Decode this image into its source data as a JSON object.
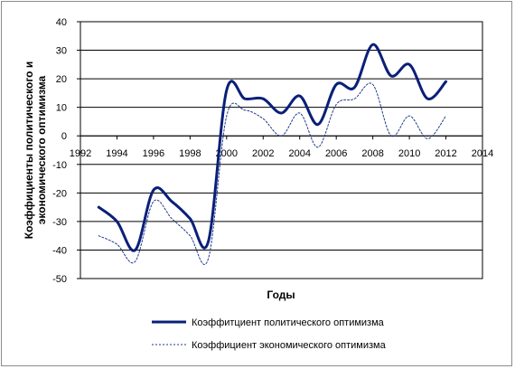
{
  "chart_data": {
    "type": "line",
    "title": "",
    "xlabel": "Годы",
    "ylabel_line1": "Коэффициенты  политического и",
    "ylabel_line2": "экономического  оптимизма",
    "xlim": [
      1992,
      2014
    ],
    "ylim": [
      -50,
      40
    ],
    "x_ticks": [
      1992,
      1994,
      1996,
      1998,
      2000,
      2002,
      2004,
      2006,
      2008,
      2010,
      2012,
      2014
    ],
    "y_ticks": [
      40,
      30,
      20,
      10,
      0,
      -10,
      -20,
      -30,
      -40,
      -50
    ],
    "grid": "horizontal",
    "legend_position": "bottom",
    "x": [
      1993,
      1994,
      1995,
      1996,
      1997,
      1998,
      1999,
      2000,
      2001,
      2002,
      2003,
      2004,
      2005,
      2006,
      2007,
      2008,
      2009,
      2010,
      2011,
      2012
    ],
    "series": [
      {
        "name": "Коэффитциент политического оптимизма",
        "style": "solid",
        "color": "#0a1f78",
        "values": [
          -25,
          -30,
          -40,
          -19,
          -23,
          -29,
          -37,
          16,
          13,
          13,
          8,
          14,
          4,
          18,
          17,
          32,
          21,
          25,
          13,
          19
        ]
      },
      {
        "name": "Коэффициент экономического оптимизма",
        "style": "dashed",
        "color": "#1f3a8c",
        "values": [
          -35,
          -38,
          -44,
          -23,
          -29,
          -35,
          -43,
          7,
          9,
          6,
          0,
          8,
          -4,
          11,
          13,
          18,
          0,
          7,
          -1,
          7
        ]
      }
    ]
  }
}
